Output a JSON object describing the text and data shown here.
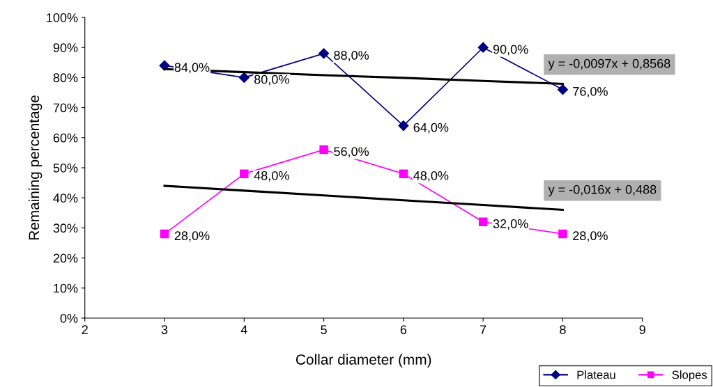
{
  "chart_data": {
    "type": "line",
    "xlabel": "Collar diameter (mm)",
    "ylabel": "Remaining percentage",
    "x": [
      3,
      4,
      5,
      6,
      7,
      8
    ],
    "series": [
      {
        "name": "Plateau",
        "color": "#000080",
        "marker": "diamond",
        "values": [
          84,
          80,
          88,
          64,
          90,
          76
        ],
        "value_labels": [
          "84,0%",
          "80,0%",
          "88,0%",
          "64,0%",
          "90,0%",
          "76,0%"
        ]
      },
      {
        "name": "Slopes",
        "color": "#ff00ff",
        "marker": "square",
        "values": [
          28,
          48,
          56,
          48,
          32,
          28
        ],
        "value_labels": [
          "28,0%",
          "48,0%",
          "56,0%",
          "48,0%",
          "32,0%",
          "28,0%"
        ]
      },
      {
        "type": "line",
        "color": "#000000",
        "marker": "none",
        "values": [
          82.8,
          81.8,
          80.8,
          79.9,
          78.9,
          77.9
        ]
      },
      {
        "type": "line",
        "color": "#000000",
        "marker": "none",
        "values": [
          44,
          42.4,
          40.8,
          39.2,
          37.6,
          36
        ]
      }
    ],
    "annotations": [
      "y = -0,0097x + 0,8568",
      "y = -0,016x + 0,488"
    ],
    "xlim": [
      2,
      9
    ],
    "xticks": [
      2,
      3,
      4,
      5,
      6,
      7,
      8,
      9
    ],
    "ylim": [
      0,
      100
    ],
    "yticks": [
      {
        "value": 0,
        "label": "0%"
      },
      {
        "value": 10,
        "label": "10%"
      },
      {
        "value": 20,
        "label": "20%"
      },
      {
        "value": 30,
        "label": "30%"
      },
      {
        "value": 40,
        "label": "40%"
      },
      {
        "value": 50,
        "label": "50%"
      },
      {
        "value": 60,
        "label": "60%"
      },
      {
        "value": 70,
        "label": "70%"
      },
      {
        "value": 80,
        "label": "80%"
      },
      {
        "value": 90,
        "label": "90%"
      },
      {
        "value": 100,
        "label": "100%"
      }
    ],
    "grid": false,
    "legend": "bottom right",
    "line_style": "solid"
  }
}
